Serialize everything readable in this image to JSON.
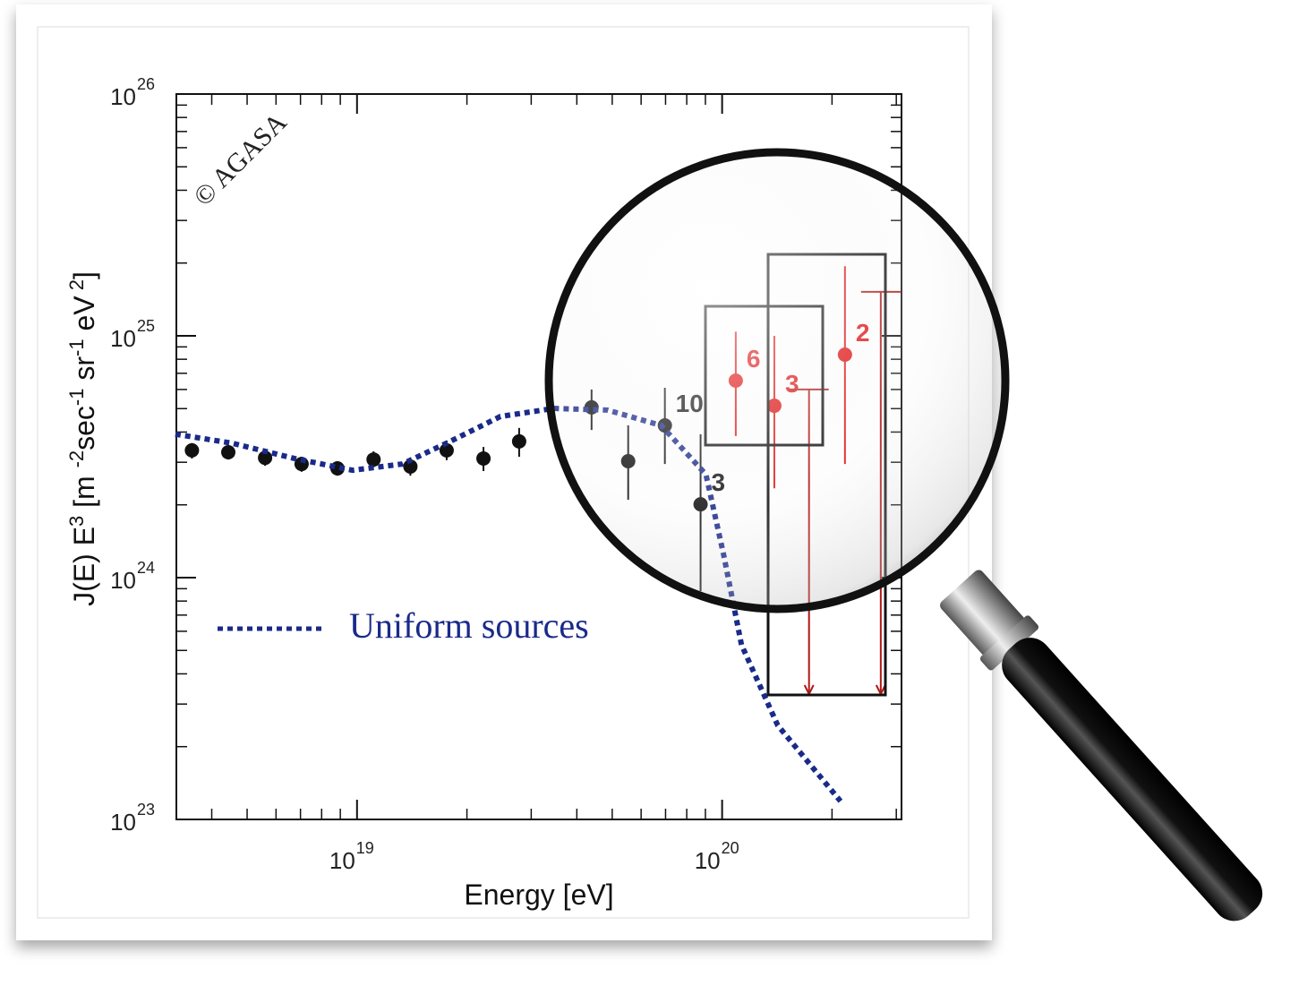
{
  "chart_data": {
    "type": "scatter",
    "xlabel": "Energy [eV]",
    "ylabel": [
      {
        "text": "J(E) E"
      },
      {
        "text": "3",
        "sup": true
      },
      {
        "text": " [m "
      },
      {
        "text": "-2",
        "sup": true
      },
      {
        "text": "sec"
      },
      {
        "text": "-1",
        "sup": true
      },
      {
        "text": " sr"
      },
      {
        "text": "-1",
        "sup": true
      },
      {
        "text": " eV"
      },
      {
        "text": " 2",
        "sup": true
      },
      {
        "text": "]"
      }
    ],
    "annotation": "© AGASA",
    "xscale": "log",
    "yscale": "log",
    "xlim": [
      3.2e+18,
      3.1e+20
    ],
    "ylim": [
      1e+23,
      1e+26
    ],
    "xticks": [
      {
        "value": 1e+19,
        "label": "10",
        "sup": "19"
      },
      {
        "value": 1e+20,
        "label": "10",
        "sup": "20"
      }
    ],
    "yticks": [
      {
        "value": 1e+23,
        "label": "10",
        "sup": "23"
      },
      {
        "value": 1e+24,
        "label": "10",
        "sup": "24"
      },
      {
        "value": 1e+25,
        "label": "10",
        "sup": "25"
      },
      {
        "value": 1e+26,
        "label": "10",
        "sup": "26"
      }
    ],
    "series": [
      {
        "kind": "points",
        "color": "#111111",
        "x": [
          3.53e+18,
          4.44e+18,
          5.6e+18,
          7.05e+18,
          8.84e+18,
          1.11e+19,
          1.4e+19,
          1.76e+19,
          2.22e+19,
          2.78e+19,
          4.39e+19,
          5.53e+19,
          6.97e+19,
          8.73e+19
        ],
        "values": [
          3.36e+24,
          3.3e+24,
          3.13e+24,
          2.95e+24,
          2.83e+24,
          3.08e+24,
          2.88e+24,
          3.36e+24,
          3.11e+24,
          3.66e+24,
          5.06e+24,
          3.03e+24,
          4.26e+24,
          2.01e+24
        ],
        "lower": [
          3.11e+24,
          3.08e+24,
          2.9e+24,
          2.74e+24,
          2.64e+24,
          2.86e+24,
          2.64e+24,
          3.06e+24,
          2.76e+24,
          3.16e+24,
          4.08e+24,
          2.1e+24,
          2.95e+24,
          8.8e+23
        ],
        "upper": [
          3.6e+24,
          3.53e+24,
          3.39e+24,
          3.16e+24,
          3.03e+24,
          3.33e+24,
          3.14e+24,
          3.69e+24,
          3.47e+24,
          4.16e+24,
          6e+24,
          4.26e+24,
          6.1e+24,
          3.92e+24
        ],
        "labels": [
          null,
          null,
          null,
          null,
          null,
          null,
          null,
          null,
          null,
          null,
          null,
          null,
          "10",
          "3"
        ]
      },
      {
        "kind": "points",
        "color": "#e01010",
        "x": [
          1.09e+20,
          1.39e+20,
          2.17e+20
        ],
        "values": [
          6.53e+24,
          5.14e+24,
          8.36e+24
        ],
        "lower": [
          3.85e+24,
          2.34e+24,
          2.95e+24
        ],
        "upper": [
          1.04e+25,
          1e+25,
          1.94e+25
        ],
        "labels": [
          "6",
          "3",
          "2"
        ]
      },
      {
        "kind": "upper-limits",
        "color": "#b01818",
        "x": [
          1.73e+20,
          2.72e+20
        ],
        "values": [
          6e+24,
          1.52e+25
        ]
      },
      {
        "kind": "line",
        "name": "Uniform sources",
        "color": "#1a2a8a",
        "dashed": true,
        "x": [
          3.18e+18,
          4.54e+18,
          6.74e+18,
          9.72e+18,
          1.33e+19,
          1.76e+19,
          2.47e+19,
          3.46e+19,
          4.86e+19,
          6.81e+19,
          9.03e+19,
          1.01e+20,
          1.13e+20,
          1.42e+20,
          2.11e+20
        ],
        "values": [
          3.92e+24,
          3.6e+24,
          3.11e+24,
          2.78e+24,
          2.95e+24,
          3.6e+24,
          4.64e+24,
          5.01e+24,
          4.93e+24,
          4.26e+24,
          2.67e+24,
          1.24e+24,
          5.27e+23,
          2.45e+23,
          1.19e+23
        ]
      }
    ]
  }
}
